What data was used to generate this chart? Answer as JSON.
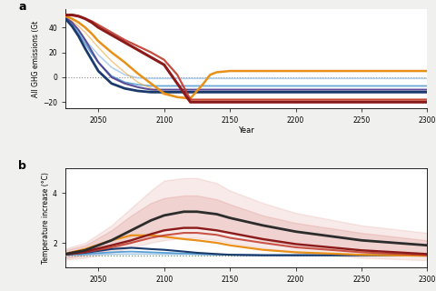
{
  "years_a": [
    2020,
    2025,
    2030,
    2035,
    2040,
    2045,
    2050,
    2060,
    2070,
    2080,
    2090,
    2100,
    2110,
    2120,
    2130,
    2135,
    2140,
    2150,
    2160,
    2200,
    2250,
    2300
  ],
  "panel_a": {
    "line_light_blue": [
      50,
      47,
      42,
      37,
      30,
      24,
      18,
      8,
      2,
      -0.5,
      -1,
      -1,
      -1,
      -1,
      -1,
      -1,
      -1,
      -1,
      -1,
      -1,
      -1,
      -1
    ],
    "line_blue": [
      50,
      47,
      42,
      35,
      27,
      19,
      12,
      1,
      -4,
      -6,
      -7,
      -7,
      -7,
      -7,
      -7,
      -7,
      -7,
      -7,
      -7,
      -7,
      -7,
      -7
    ],
    "line_dark_navy": [
      50,
      47,
      41,
      33,
      23,
      14,
      5,
      -5,
      -9,
      -11,
      -12,
      -12,
      -12,
      -12,
      -12,
      -12,
      -12,
      -12,
      -12,
      -12,
      -12,
      -12
    ],
    "line_orange_thin": [
      50,
      48,
      45,
      41,
      36,
      30,
      24,
      13,
      4,
      -4,
      -9,
      -14,
      -16,
      -18,
      -18,
      -18,
      -18,
      -18,
      -18,
      -18,
      -18,
      -18
    ],
    "line_orange": [
      50,
      49,
      47,
      44,
      40,
      35,
      29,
      20,
      12,
      3,
      -5,
      -13,
      -16,
      -17,
      -5,
      2,
      4,
      5,
      5,
      5,
      5,
      5
    ],
    "line_dark_red": [
      50,
      50,
      50,
      49,
      47,
      44,
      40,
      34,
      28,
      22,
      16,
      10,
      -5,
      -20,
      -20,
      -20,
      -20,
      -20,
      -20,
      -20,
      -20,
      -20
    ],
    "line_red": [
      50,
      50,
      50,
      49,
      47,
      45,
      42,
      36,
      30,
      25,
      20,
      14,
      2,
      -18,
      -18,
      -18,
      -18,
      -18,
      -18,
      -18,
      -18,
      -18
    ],
    "line_purple": [
      50,
      48,
      44,
      38,
      30,
      21,
      12,
      0,
      -5,
      -8,
      -10,
      -10,
      -10,
      -10,
      -10,
      -10,
      -10,
      -10,
      -10,
      -10,
      -10,
      -10
    ]
  },
  "panel_b": {
    "years": [
      2020,
      2040,
      2060,
      2075,
      2090,
      2100,
      2115,
      2125,
      2140,
      2150,
      2175,
      2200,
      2250,
      2300
    ],
    "line_black_center": [
      1.5,
      1.7,
      2.1,
      2.5,
      2.9,
      3.1,
      3.25,
      3.25,
      3.15,
      3.0,
      2.7,
      2.45,
      2.1,
      1.9
    ],
    "line_dark_red_center": [
      1.5,
      1.65,
      1.9,
      2.1,
      2.35,
      2.5,
      2.6,
      2.6,
      2.5,
      2.4,
      2.15,
      1.95,
      1.7,
      1.55
    ],
    "line_red_center": [
      1.5,
      1.62,
      1.82,
      2.0,
      2.2,
      2.3,
      2.4,
      2.4,
      2.32,
      2.2,
      2.0,
      1.82,
      1.62,
      1.5
    ],
    "line_orange_center": [
      1.5,
      1.75,
      2.1,
      2.3,
      2.3,
      2.25,
      2.15,
      2.1,
      2.0,
      1.9,
      1.72,
      1.62,
      1.52,
      1.48
    ],
    "line_dark_blue_center": [
      1.5,
      1.6,
      1.75,
      1.8,
      1.75,
      1.72,
      1.65,
      1.6,
      1.55,
      1.52,
      1.5,
      1.5,
      1.5,
      1.5
    ],
    "line_blue_center": [
      1.5,
      1.55,
      1.62,
      1.65,
      1.62,
      1.6,
      1.57,
      1.55,
      1.53,
      1.52,
      1.5,
      1.5,
      1.5,
      1.5
    ],
    "line_light_blue_center": [
      1.5,
      1.52,
      1.54,
      1.55,
      1.55,
      1.54,
      1.54,
      1.54,
      1.53,
      1.53,
      1.52,
      1.52,
      1.52,
      1.52
    ],
    "shade_outer_lo": [
      1.3,
      1.4,
      1.6,
      1.8,
      2.0,
      2.1,
      2.2,
      2.2,
      2.1,
      2.0,
      1.8,
      1.6,
      1.4,
      1.3
    ],
    "shade_outer_hi": [
      1.7,
      2.0,
      2.7,
      3.4,
      4.1,
      4.5,
      4.6,
      4.6,
      4.4,
      4.1,
      3.6,
      3.2,
      2.7,
      2.4
    ],
    "shade_inner_lo": [
      1.35,
      1.5,
      1.75,
      2.0,
      2.3,
      2.5,
      2.6,
      2.6,
      2.5,
      2.4,
      2.1,
      1.9,
      1.65,
      1.5
    ],
    "shade_inner_hi": [
      1.65,
      1.9,
      2.5,
      3.1,
      3.6,
      3.8,
      3.9,
      3.9,
      3.75,
      3.55,
      3.1,
      2.8,
      2.4,
      2.1
    ],
    "line_green_dotted": [
      1.5,
      1.5,
      1.5,
      1.5,
      1.5,
      1.5,
      1.5,
      1.5,
      1.5,
      1.5,
      1.5,
      1.5,
      1.5,
      1.5
    ]
  },
  "colors": {
    "light_blue": "#a8c8e8",
    "blue": "#5a9fd4",
    "dark_navy": "#1a3a6c",
    "purple": "#4a3a8c",
    "orange_thin": "#f0b050",
    "orange": "#e8901a",
    "dark_red": "#8b1a1a",
    "red": "#c0392b",
    "green": "#5a8a5a",
    "black": "#2c2c2c",
    "bg_plot": "#ffffff"
  },
  "xlabel_a": "Year",
  "ylabel_a": "All GHG emissions (Gt",
  "ylabel_b": "Temperature increase (°C)",
  "yticks_a": [
    -20,
    0,
    20,
    40
  ],
  "xticks_a": [
    2050,
    2100,
    2150,
    2200,
    2250,
    2300
  ],
  "yticks_b": [
    2,
    4
  ],
  "label_a": "a",
  "label_b": "b",
  "bg_color": "#f0f0ee"
}
